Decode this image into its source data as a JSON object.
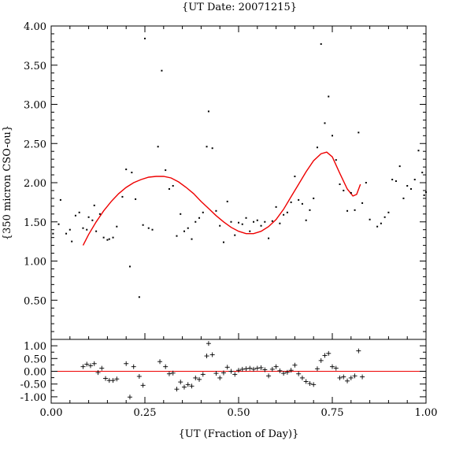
{
  "chart_data": [
    {
      "type": "scatter",
      "panel": "main",
      "title": "{UT Date: 20071215}",
      "ylabel": "{350 micron CSO-ou}",
      "xlim": [
        0,
        1
      ],
      "ylim": [
        0,
        4
      ],
      "x_ticks": [
        "0.00",
        "0.25",
        "0.50",
        "0.75",
        "1.00"
      ],
      "y_ticks": [
        "0.50",
        "1.00",
        "1.50",
        "2.00",
        "2.50",
        "3.00",
        "3.50",
        "4.00"
      ],
      "grid": false,
      "series": [
        {
          "role": "data",
          "marker": "dot",
          "color": "#000000",
          "points": [
            [
              0.005,
              1.35
            ],
            [
              0.02,
              1.47
            ],
            [
              0.025,
              1.78
            ],
            [
              0.04,
              1.35
            ],
            [
              0.05,
              1.4
            ],
            [
              0.055,
              1.25
            ],
            [
              0.065,
              1.58
            ],
            [
              0.075,
              1.62
            ],
            [
              0.085,
              1.42
            ],
            [
              0.095,
              1.4
            ],
            [
              0.1,
              1.56
            ],
            [
              0.11,
              1.52
            ],
            [
              0.115,
              1.71
            ],
            [
              0.12,
              1.38
            ],
            [
              0.13,
              1.6
            ],
            [
              0.14,
              1.3
            ],
            [
              0.15,
              1.27
            ],
            [
              0.155,
              1.28
            ],
            [
              0.165,
              1.3
            ],
            [
              0.175,
              1.44
            ],
            [
              0.19,
              1.82
            ],
            [
              0.2,
              2.17
            ],
            [
              0.21,
              0.93
            ],
            [
              0.215,
              2.13
            ],
            [
              0.225,
              1.79
            ],
            [
              0.235,
              0.54
            ],
            [
              0.245,
              1.46
            ],
            [
              0.25,
              3.84
            ],
            [
              0.26,
              1.42
            ],
            [
              0.27,
              1.4
            ],
            [
              0.285,
              2.46
            ],
            [
              0.295,
              3.43
            ],
            [
              0.305,
              2.16
            ],
            [
              0.315,
              1.92
            ],
            [
              0.325,
              1.96
            ],
            [
              0.335,
              1.32
            ],
            [
              0.345,
              1.6
            ],
            [
              0.355,
              1.38
            ],
            [
              0.365,
              1.42
            ],
            [
              0.375,
              1.28
            ],
            [
              0.385,
              1.5
            ],
            [
              0.395,
              1.55
            ],
            [
              0.405,
              1.62
            ],
            [
              0.415,
              2.46
            ],
            [
              0.42,
              2.91
            ],
            [
              0.43,
              2.44
            ],
            [
              0.44,
              1.64
            ],
            [
              0.45,
              1.45
            ],
            [
              0.46,
              1.24
            ],
            [
              0.47,
              1.76
            ],
            [
              0.48,
              1.5
            ],
            [
              0.49,
              1.33
            ],
            [
              0.5,
              1.49
            ],
            [
              0.51,
              1.47
            ],
            [
              0.52,
              1.55
            ],
            [
              0.53,
              1.38
            ],
            [
              0.54,
              1.5
            ],
            [
              0.55,
              1.52
            ],
            [
              0.56,
              1.45
            ],
            [
              0.57,
              1.5
            ],
            [
              0.58,
              1.29
            ],
            [
              0.59,
              1.51
            ],
            [
              0.6,
              1.69
            ],
            [
              0.61,
              1.48
            ],
            [
              0.62,
              1.59
            ],
            [
              0.63,
              1.62
            ],
            [
              0.64,
              1.75
            ],
            [
              0.65,
              2.08
            ],
            [
              0.66,
              1.78
            ],
            [
              0.67,
              1.73
            ],
            [
              0.68,
              1.52
            ],
            [
              0.69,
              1.65
            ],
            [
              0.7,
              1.8
            ],
            [
              0.71,
              2.45
            ],
            [
              0.72,
              3.77
            ],
            [
              0.73,
              2.76
            ],
            [
              0.74,
              3.1
            ],
            [
              0.75,
              2.6
            ],
            [
              0.76,
              2.29
            ],
            [
              0.77,
              1.98
            ],
            [
              0.78,
              1.9
            ],
            [
              0.79,
              1.64
            ],
            [
              0.8,
              1.87
            ],
            [
              0.81,
              1.65
            ],
            [
              0.82,
              2.64
            ],
            [
              0.83,
              1.74
            ],
            [
              0.84,
              2.0
            ],
            [
              0.85,
              1.53
            ],
            [
              0.87,
              1.44
            ],
            [
              0.88,
              1.48
            ],
            [
              0.89,
              1.56
            ],
            [
              0.9,
              1.62
            ],
            [
              0.91,
              2.04
            ],
            [
              0.92,
              2.02
            ],
            [
              0.93,
              2.21
            ],
            [
              0.94,
              1.8
            ],
            [
              0.95,
              1.96
            ],
            [
              0.96,
              1.92
            ],
            [
              0.97,
              2.04
            ],
            [
              0.98,
              2.41
            ],
            [
              0.99,
              2.13
            ],
            [
              0.995,
              1.84
            ],
            [
              1.0,
              1.88
            ]
          ]
        },
        {
          "role": "fit",
          "style": "line",
          "color": "#ee0000",
          "points": [
            [
              0.085,
              1.2
            ],
            [
              0.1,
              1.34
            ],
            [
              0.12,
              1.5
            ],
            [
              0.14,
              1.64
            ],
            [
              0.16,
              1.76
            ],
            [
              0.18,
              1.86
            ],
            [
              0.2,
              1.94
            ],
            [
              0.22,
              2.0
            ],
            [
              0.24,
              2.04
            ],
            [
              0.26,
              2.07
            ],
            [
              0.28,
              2.08
            ],
            [
              0.3,
              2.08
            ],
            [
              0.32,
              2.06
            ],
            [
              0.34,
              2.01
            ],
            [
              0.36,
              1.94
            ],
            [
              0.38,
              1.86
            ],
            [
              0.4,
              1.76
            ],
            [
              0.42,
              1.67
            ],
            [
              0.44,
              1.58
            ],
            [
              0.46,
              1.5
            ],
            [
              0.48,
              1.43
            ],
            [
              0.5,
              1.38
            ],
            [
              0.52,
              1.35
            ],
            [
              0.54,
              1.35
            ],
            [
              0.56,
              1.38
            ],
            [
              0.58,
              1.44
            ],
            [
              0.6,
              1.53
            ],
            [
              0.62,
              1.66
            ],
            [
              0.64,
              1.82
            ],
            [
              0.66,
              1.98
            ],
            [
              0.68,
              2.14
            ],
            [
              0.7,
              2.28
            ],
            [
              0.72,
              2.37
            ],
            [
              0.735,
              2.39
            ],
            [
              0.75,
              2.33
            ],
            [
              0.77,
              2.12
            ],
            [
              0.79,
              1.92
            ],
            [
              0.805,
              1.83
            ],
            [
              0.815,
              1.85
            ],
            [
              0.825,
              1.98
            ]
          ]
        }
      ]
    },
    {
      "type": "scatter",
      "panel": "residuals",
      "xlabel": "{UT (Fraction of Day)}",
      "xlim": [
        0,
        1
      ],
      "ylim": [
        -1.25,
        1.25
      ],
      "y_ticks": [
        "1.00",
        "0.50",
        "0.00",
        "-0.50",
        "-1.00"
      ],
      "zero_line_color": "#ee0000",
      "series": [
        {
          "role": "residuals",
          "marker": "plus",
          "color": "#000000",
          "points": [
            [
              0.085,
              0.18
            ],
            [
              0.095,
              0.28
            ],
            [
              0.105,
              0.22
            ],
            [
              0.115,
              0.3
            ],
            [
              0.125,
              -0.05
            ],
            [
              0.135,
              0.12
            ],
            [
              0.145,
              -0.28
            ],
            [
              0.155,
              -0.36
            ],
            [
              0.165,
              -0.36
            ],
            [
              0.175,
              -0.3
            ],
            [
              0.2,
              0.3
            ],
            [
              0.21,
              -1.01
            ],
            [
              0.22,
              0.18
            ],
            [
              0.235,
              -0.2
            ],
            [
              0.245,
              -0.55
            ],
            [
              0.29,
              0.38
            ],
            [
              0.305,
              0.18
            ],
            [
              0.315,
              -0.1
            ],
            [
              0.325,
              -0.07
            ],
            [
              0.335,
              -0.7
            ],
            [
              0.345,
              -0.42
            ],
            [
              0.355,
              -0.62
            ],
            [
              0.365,
              -0.52
            ],
            [
              0.375,
              -0.58
            ],
            [
              0.385,
              -0.26
            ],
            [
              0.395,
              -0.32
            ],
            [
              0.405,
              -0.12
            ],
            [
              0.415,
              0.6
            ],
            [
              0.42,
              1.09
            ],
            [
              0.43,
              0.65
            ],
            [
              0.44,
              -0.08
            ],
            [
              0.45,
              -0.26
            ],
            [
              0.46,
              -0.06
            ],
            [
              0.47,
              0.16
            ],
            [
              0.48,
              0.0
            ],
            [
              0.49,
              -0.12
            ],
            [
              0.5,
              0.04
            ],
            [
              0.51,
              0.08
            ],
            [
              0.52,
              0.1
            ],
            [
              0.53,
              0.12
            ],
            [
              0.54,
              0.08
            ],
            [
              0.55,
              0.12
            ],
            [
              0.56,
              0.14
            ],
            [
              0.57,
              0.06
            ],
            [
              0.58,
              -0.18
            ],
            [
              0.59,
              0.08
            ],
            [
              0.6,
              0.18
            ],
            [
              0.61,
              0.02
            ],
            [
              0.62,
              -0.08
            ],
            [
              0.63,
              -0.04
            ],
            [
              0.64,
              0.04
            ],
            [
              0.65,
              0.24
            ],
            [
              0.66,
              -0.1
            ],
            [
              0.67,
              -0.26
            ],
            [
              0.68,
              -0.4
            ],
            [
              0.69,
              -0.48
            ],
            [
              0.7,
              -0.52
            ],
            [
              0.71,
              0.1
            ],
            [
              0.72,
              0.42
            ],
            [
              0.73,
              0.62
            ],
            [
              0.74,
              0.7
            ],
            [
              0.75,
              0.18
            ],
            [
              0.76,
              0.12
            ],
            [
              0.77,
              -0.26
            ],
            [
              0.78,
              -0.22
            ],
            [
              0.79,
              -0.38
            ],
            [
              0.8,
              -0.26
            ],
            [
              0.81,
              -0.18
            ],
            [
              0.82,
              0.8
            ],
            [
              0.83,
              -0.22
            ]
          ]
        }
      ]
    }
  ]
}
